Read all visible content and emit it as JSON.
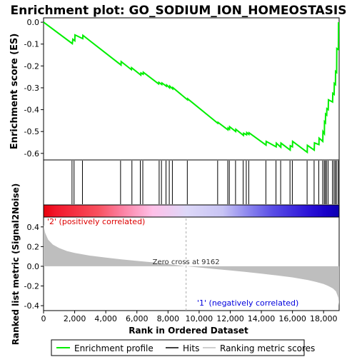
{
  "chart_data": {
    "type": "line",
    "title": "Enrichment plot: GO_SODIUM_ION_HOMEOSTASIS",
    "es_panel": {
      "ylabel": "Enrichment score (ES)",
      "ylim": [
        -0.63,
        0.02
      ],
      "y_ticks": [
        0.0,
        -0.1,
        -0.2,
        -0.3,
        -0.4,
        -0.5,
        -0.6
      ],
      "y_tick_labels": [
        "0.0",
        "-0.1",
        "-0.2",
        "-0.3",
        "-0.4",
        "-0.5",
        "-0.6"
      ],
      "series": [
        {
          "name": "Enrichment profile",
          "color": "#00ee00",
          "x": [
            0,
            1850,
            1880,
            2010,
            2020,
            2520,
            2530,
            4980,
            4990,
            5650,
            5660,
            6250,
            6260,
            6400,
            6410,
            7400,
            7410,
            7600,
            7610,
            7900,
            7910,
            8100,
            8110,
            8300,
            8310,
            9250,
            9260,
            11200,
            11210,
            11850,
            11860,
            11950,
            11960,
            12350,
            12360,
            12850,
            12860,
            13050,
            13060,
            13200,
            13210,
            14300,
            14310,
            14950,
            14960,
            15250,
            15260,
            15850,
            15860,
            16000,
            16010,
            16950,
            16960,
            17400,
            17410,
            17700,
            17710,
            17950,
            17960,
            18050,
            18060,
            18120,
            18130,
            18200,
            18210,
            18300,
            18310,
            18580,
            18590,
            18680,
            18690,
            18760,
            18770,
            18840,
            18850,
            18950,
            18960
          ],
          "y": [
            0.0,
            -0.098,
            -0.078,
            -0.085,
            -0.058,
            -0.075,
            -0.06,
            -0.196,
            -0.18,
            -0.217,
            -0.208,
            -0.242,
            -0.232,
            -0.238,
            -0.229,
            -0.282,
            -0.275,
            -0.285,
            -0.278,
            -0.293,
            -0.287,
            -0.3,
            -0.292,
            -0.305,
            -0.299,
            -0.355,
            -0.35,
            -0.462,
            -0.458,
            -0.492,
            -0.484,
            -0.49,
            -0.478,
            -0.5,
            -0.49,
            -0.518,
            -0.508,
            -0.515,
            -0.505,
            -0.513,
            -0.506,
            -0.562,
            -0.545,
            -0.57,
            -0.553,
            -0.572,
            -0.553,
            -0.585,
            -0.565,
            -0.57,
            -0.545,
            -0.595,
            -0.563,
            -0.585,
            -0.552,
            -0.56,
            -0.53,
            -0.545,
            -0.5,
            -0.51,
            -0.455,
            -0.46,
            -0.42,
            -0.425,
            -0.395,
            -0.4,
            -0.355,
            -0.365,
            -0.325,
            -0.33,
            -0.28,
            -0.285,
            -0.225,
            -0.23,
            -0.12,
            -0.125,
            0.0
          ]
        }
      ]
    },
    "hits": [
      1830,
      1960,
      2500,
      4950,
      5680,
      6220,
      6380,
      7430,
      7580,
      7870,
      8080,
      8280,
      9240,
      11190,
      11840,
      11940,
      12340,
      12830,
      13030,
      13190,
      14290,
      14940,
      15240,
      15840,
      15990,
      16940,
      17390,
      17690,
      17940,
      18040,
      18110,
      18190,
      18290,
      18570,
      18670,
      18750,
      18830,
      18940
    ],
    "ranked_panel": {
      "ylabel": "Ranked list metric (Signal2Noise)",
      "ylim": [
        -0.45,
        0.5
      ],
      "y_ticks": [
        0.4,
        0.2,
        0.0,
        -0.2,
        -0.4
      ],
      "y_tick_labels": [
        "0.4",
        "0.2",
        "0.0",
        "-0.2",
        "-0.4"
      ],
      "x": [
        0,
        100,
        300,
        600,
        1000,
        1500,
        2000,
        3000,
        4000,
        5000,
        6000,
        7000,
        8000,
        9162,
        10000,
        11000,
        12000,
        13000,
        14000,
        15000,
        16000,
        17000,
        17500,
        18000,
        18300,
        18600,
        18800,
        18950,
        19000
      ],
      "values": [
        0.42,
        0.34,
        0.27,
        0.22,
        0.185,
        0.155,
        0.135,
        0.108,
        0.088,
        0.07,
        0.055,
        0.04,
        0.023,
        0.0,
        -0.012,
        -0.027,
        -0.042,
        -0.058,
        -0.075,
        -0.093,
        -0.113,
        -0.14,
        -0.158,
        -0.18,
        -0.2,
        -0.225,
        -0.255,
        -0.32,
        -0.4
      ],
      "pos_label": "'2' (positively correlated)",
      "neg_label": "'1' (negatively correlated)",
      "zero_cross_label": "Zero cross at 9162",
      "zero_cross": 9162
    },
    "x_axis": {
      "label": "Rank in Ordered Dataset",
      "xlim": [
        0,
        19000
      ],
      "ticks": [
        0,
        2000,
        4000,
        6000,
        8000,
        10000,
        12000,
        14000,
        16000,
        18000
      ],
      "tick_labels": [
        "0",
        "2,000",
        "4,000",
        "6,000",
        "8,000",
        "10,000",
        "12,000",
        "14,000",
        "16,000",
        "18,000"
      ]
    },
    "legend": {
      "placement": "bottom",
      "entries": [
        {
          "label": "Enrichment profile",
          "color": "#00ee00"
        },
        {
          "label": "Hits",
          "color": "#000000"
        },
        {
          "label": "Ranking metric scores",
          "color": "#bebebe"
        }
      ]
    },
    "heat_bar": {
      "stops": [
        {
          "x": 0,
          "color": "#e8000b"
        },
        {
          "x": 750,
          "color": "#f2162a"
        },
        {
          "x": 3500,
          "color": "#f8505e"
        },
        {
          "x": 5000,
          "color": "#fb7fa0"
        },
        {
          "x": 7000,
          "color": "#ffc0e8"
        },
        {
          "x": 9200,
          "color": "#ddd8f8"
        },
        {
          "x": 11500,
          "color": "#c8c4f4"
        },
        {
          "x": 13200,
          "color": "#8a84ee"
        },
        {
          "x": 14700,
          "color": "#5a4ee6"
        },
        {
          "x": 17000,
          "color": "#2c14d8"
        },
        {
          "x": 18200,
          "color": "#1800c8"
        },
        {
          "x": 19000,
          "color": "#0c00b0"
        }
      ]
    }
  }
}
